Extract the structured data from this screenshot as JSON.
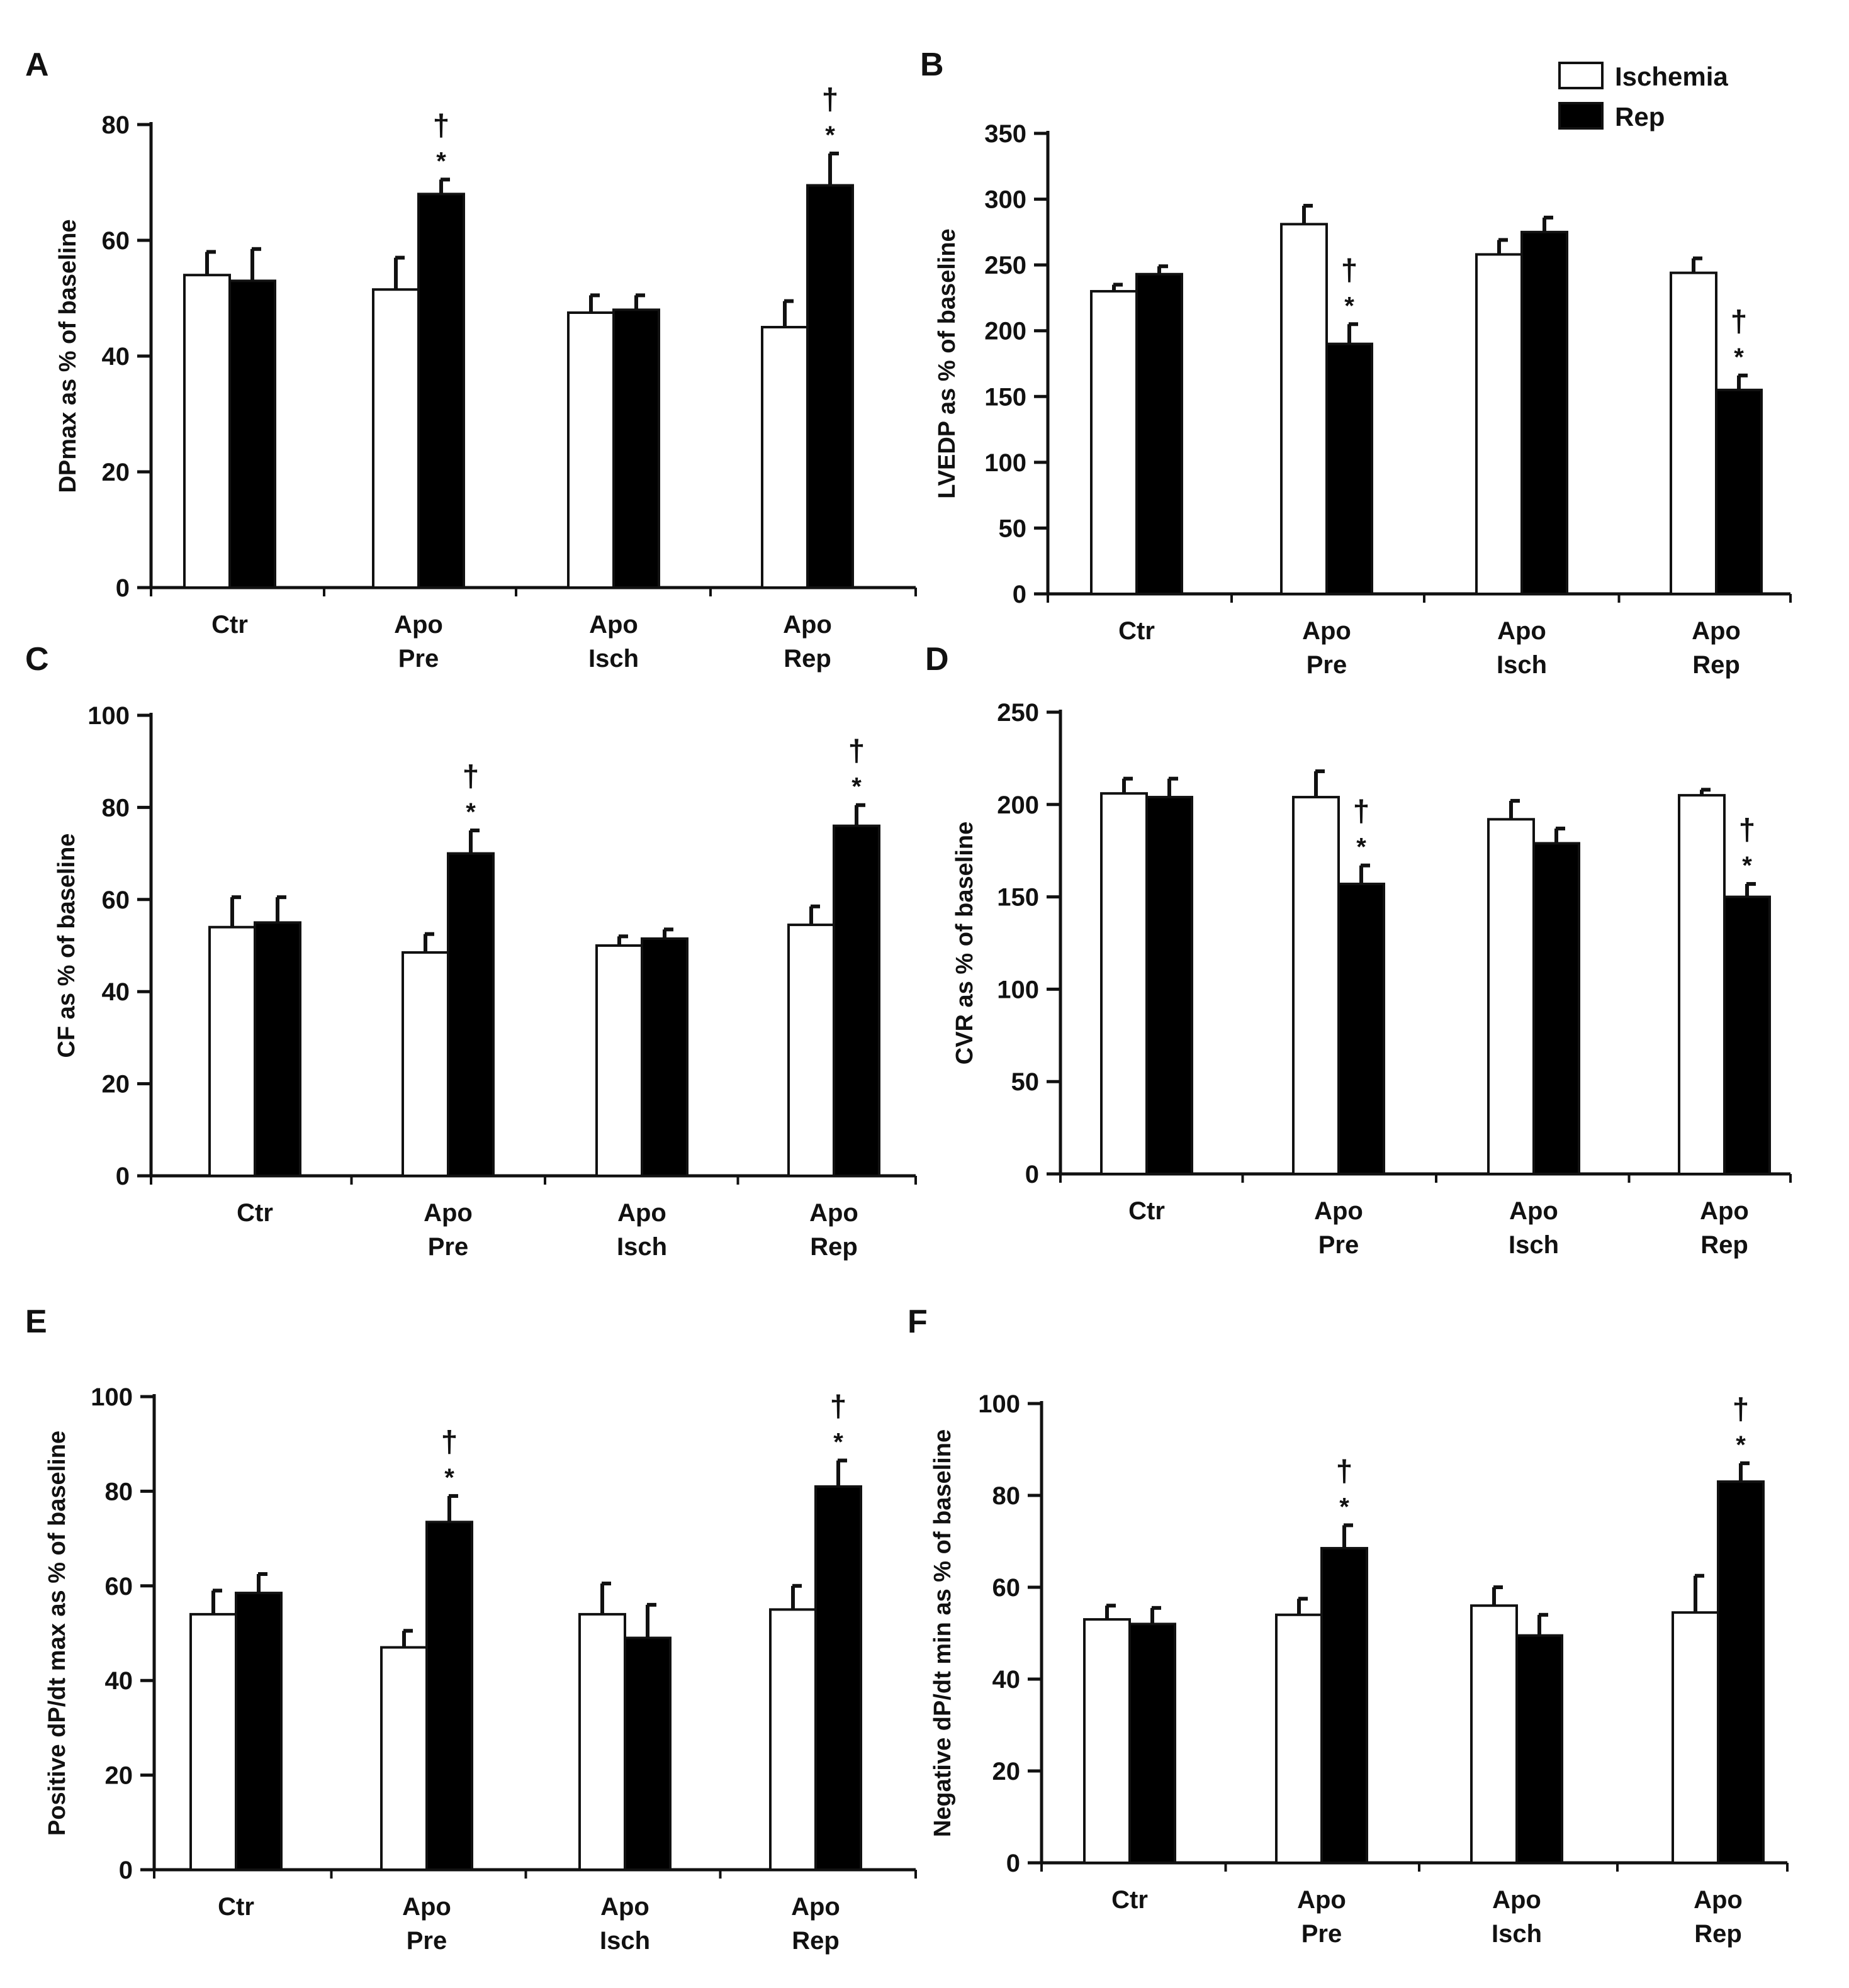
{
  "chart_data": [
    {
      "id": "A",
      "panel_label": "A",
      "type": "bar",
      "ylabel": "DPmax as % of baseline",
      "ylim": [
        0,
        80
      ],
      "yticks": [
        0,
        20,
        40,
        60,
        80
      ],
      "category_lines": [
        [
          "Ctr"
        ],
        [
          "Apo",
          "Pre"
        ],
        [
          "Apo",
          "Isch"
        ],
        [
          "Apo",
          "Rep"
        ]
      ],
      "series": [
        {
          "name": "Ischemia",
          "color": "#ffffff",
          "values": [
            54,
            51.5,
            47.5,
            45
          ],
          "errors": [
            4,
            5.5,
            3,
            4.5
          ]
        },
        {
          "name": "Rep",
          "color": "#000000",
          "values": [
            53,
            68,
            48,
            69.5
          ],
          "errors": [
            5.5,
            2.5,
            2.5,
            5.5
          ]
        }
      ],
      "annotations": [
        {
          "category": 1,
          "marks": [
            "†",
            "*"
          ]
        },
        {
          "category": 3,
          "marks": [
            "†",
            "*"
          ]
        }
      ]
    },
    {
      "id": "B",
      "panel_label": "B",
      "type": "bar",
      "ylabel": "LVEDP as % of baseline",
      "ylim": [
        0,
        350
      ],
      "yticks": [
        0,
        50,
        100,
        150,
        200,
        250,
        300,
        350
      ],
      "category_lines": [
        [
          "Ctr"
        ],
        [
          "Apo",
          "Pre"
        ],
        [
          "Apo",
          "Isch"
        ],
        [
          "Apo",
          "Rep"
        ]
      ],
      "series": [
        {
          "name": "Ischemia",
          "color": "#ffffff",
          "values": [
            230,
            281,
            258,
            244
          ],
          "errors": [
            5,
            14,
            11,
            11
          ]
        },
        {
          "name": "Rep",
          "color": "#000000",
          "values": [
            243,
            190,
            275,
            155
          ],
          "errors": [
            6,
            15,
            11,
            11
          ]
        }
      ],
      "annotations": [
        {
          "category": 1,
          "marks": [
            "†",
            "*"
          ]
        },
        {
          "category": 3,
          "marks": [
            "†",
            "*"
          ]
        }
      ]
    },
    {
      "id": "C",
      "panel_label": "C",
      "type": "bar",
      "ylabel": "CF as % of baseline",
      "ylim": [
        0,
        100
      ],
      "yticks": [
        0,
        20,
        40,
        60,
        80,
        100
      ],
      "category_lines": [
        [
          "Ctr"
        ],
        [
          "Apo",
          "Pre"
        ],
        [
          "Apo",
          "Isch"
        ],
        [
          "Apo",
          "Rep"
        ]
      ],
      "series": [
        {
          "name": "Ischemia",
          "color": "#ffffff",
          "values": [
            54,
            48.5,
            50,
            54.5
          ],
          "errors": [
            6.5,
            4,
            2,
            4
          ]
        },
        {
          "name": "Rep",
          "color": "#000000",
          "values": [
            55,
            70,
            51.5,
            76
          ],
          "errors": [
            5.5,
            5,
            2,
            4.5
          ]
        }
      ],
      "annotations": [
        {
          "category": 1,
          "marks": [
            "†",
            "*"
          ]
        },
        {
          "category": 3,
          "marks": [
            "†",
            "*"
          ]
        }
      ]
    },
    {
      "id": "D",
      "panel_label": "D",
      "type": "bar",
      "ylabel": "CVR as % of baseline",
      "ylim": [
        0,
        250
      ],
      "yticks": [
        0,
        50,
        100,
        150,
        200,
        250
      ],
      "category_lines": [
        [
          "Ctr"
        ],
        [
          "Apo",
          "Pre"
        ],
        [
          "Apo",
          "Isch"
        ],
        [
          "Apo",
          "Rep"
        ]
      ],
      "series": [
        {
          "name": "Ischemia",
          "color": "#ffffff",
          "values": [
            206,
            204,
            192,
            205
          ],
          "errors": [
            8,
            14,
            10,
            3
          ]
        },
        {
          "name": "Rep",
          "color": "#000000",
          "values": [
            204,
            157,
            179,
            150
          ],
          "errors": [
            10,
            10,
            8,
            7
          ]
        }
      ],
      "annotations": [
        {
          "category": 1,
          "marks": [
            "†",
            "*"
          ]
        },
        {
          "category": 3,
          "marks": [
            "†",
            "*"
          ]
        }
      ]
    },
    {
      "id": "E",
      "panel_label": "E",
      "type": "bar",
      "ylabel": "Positive dP/dt max as % of baseline",
      "ylim": [
        0,
        100
      ],
      "yticks": [
        0,
        20,
        40,
        60,
        80,
        100
      ],
      "category_lines": [
        [
          "Ctr"
        ],
        [
          "Apo",
          "Pre"
        ],
        [
          "Apo",
          "Isch"
        ],
        [
          "Apo",
          "Rep"
        ]
      ],
      "series": [
        {
          "name": "Ischemia",
          "color": "#ffffff",
          "values": [
            54,
            47,
            54,
            55
          ],
          "errors": [
            5,
            3.5,
            6.5,
            5
          ]
        },
        {
          "name": "Rep",
          "color": "#000000",
          "values": [
            58.5,
            73.5,
            49,
            81
          ],
          "errors": [
            4,
            5.5,
            7,
            5.5
          ]
        }
      ],
      "annotations": [
        {
          "category": 1,
          "marks": [
            "†",
            "*"
          ]
        },
        {
          "category": 3,
          "marks": [
            "†",
            "*"
          ]
        }
      ]
    },
    {
      "id": "F",
      "panel_label": "F",
      "type": "bar",
      "ylabel": "Negative dP/dt min as % of baseline",
      "ylim": [
        0,
        100
      ],
      "yticks": [
        0,
        20,
        40,
        60,
        80,
        100
      ],
      "category_lines": [
        [
          "Ctr"
        ],
        [
          "Apo",
          "Pre"
        ],
        [
          "Apo",
          "Isch"
        ],
        [
          "Apo",
          "Rep"
        ]
      ],
      "series": [
        {
          "name": "Ischemia",
          "color": "#ffffff",
          "values": [
            53,
            54,
            56,
            54.5
          ],
          "errors": [
            3,
            3.5,
            4,
            8
          ]
        },
        {
          "name": "Rep",
          "color": "#000000",
          "values": [
            52,
            68.5,
            49.5,
            83
          ],
          "errors": [
            3.5,
            5,
            4.5,
            4
          ]
        }
      ],
      "annotations": [
        {
          "category": 1,
          "marks": [
            "†",
            "*"
          ]
        },
        {
          "category": 3,
          "marks": [
            "†",
            "*"
          ]
        }
      ]
    }
  ],
  "legend": {
    "position": "top-right",
    "items": [
      {
        "label": "Ischemia",
        "color": "#ffffff"
      },
      {
        "label": "Rep",
        "color": "#000000"
      }
    ]
  }
}
